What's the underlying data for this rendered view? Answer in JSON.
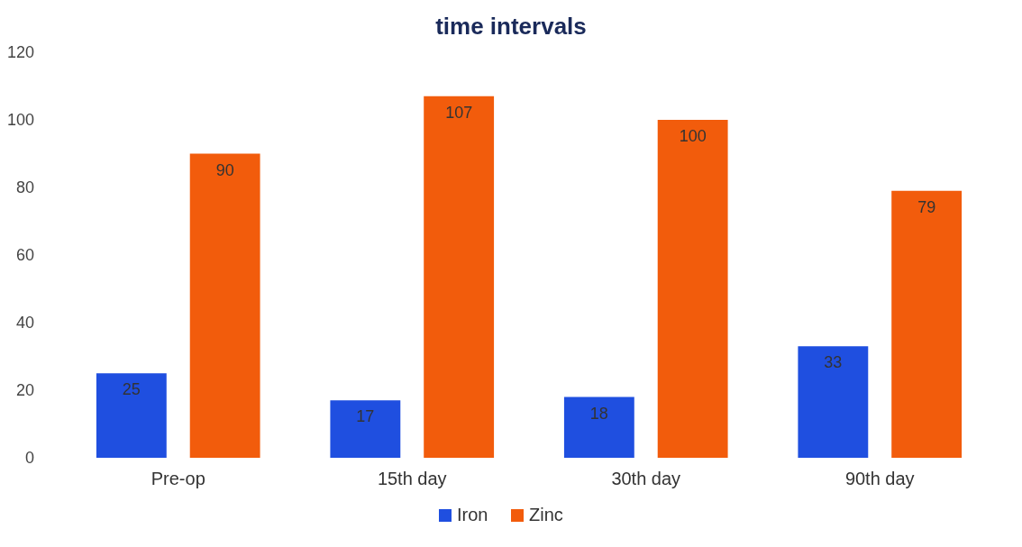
{
  "chart_data": {
    "type": "bar",
    "title": "time intervals",
    "categories": [
      "Pre-op",
      "15th day",
      "30th day",
      "90th day"
    ],
    "series": [
      {
        "name": "Iron",
        "color": "#1f4fe0",
        "values": [
          25,
          17,
          18,
          33
        ]
      },
      {
        "name": "Zinc",
        "color": "#f25c0c",
        "values": [
          90,
          107,
          100,
          79
        ]
      }
    ],
    "ylim": [
      0,
      120
    ],
    "yticks": [
      0,
      20,
      40,
      60,
      80,
      100,
      120
    ],
    "data_labels": true,
    "legend": "bottom",
    "grid": false
  }
}
